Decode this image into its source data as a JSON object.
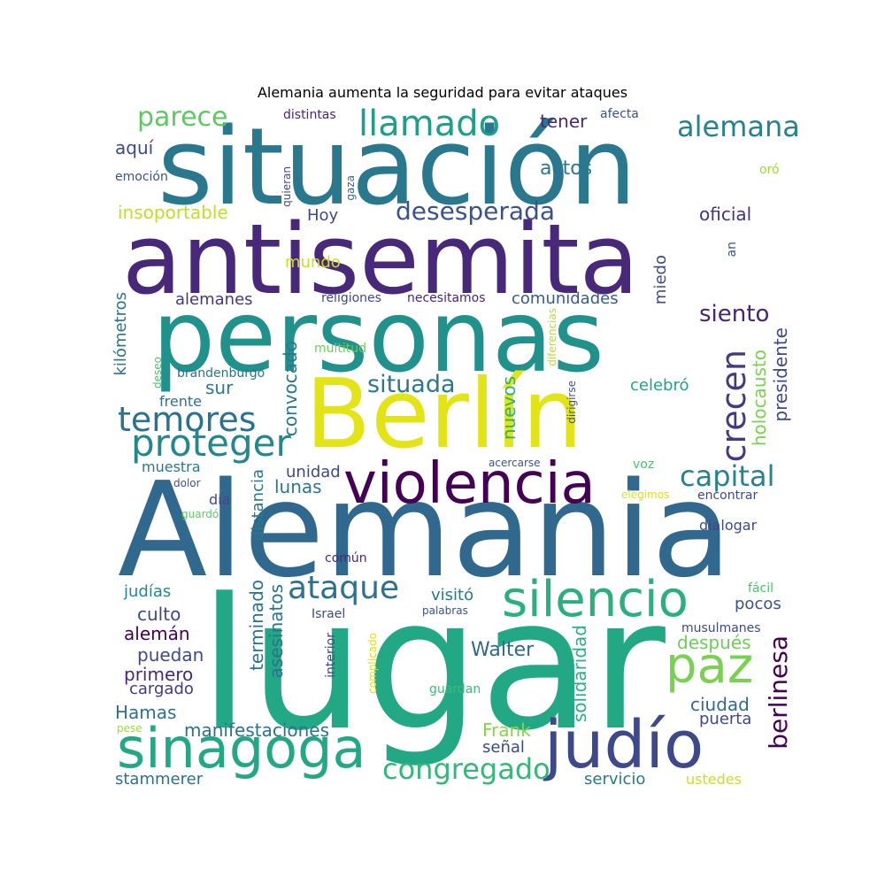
{
  "title": "Alemania aumenta la seguridad para evitar ataques",
  "words": [
    {
      "text": "situación",
      "color": "#2a788e"
    },
    {
      "text": "antisemita",
      "color": "#482878"
    },
    {
      "text": "personas",
      "color": "#21918c"
    },
    {
      "text": "Berlín",
      "color": "#e3e418"
    },
    {
      "text": "Alemania",
      "color": "#31688e"
    },
    {
      "text": "lugar",
      "color": "#22a884"
    },
    {
      "text": "violencia",
      "color": "#440154"
    },
    {
      "text": "sinagoga",
      "color": "#22a884"
    },
    {
      "text": "judío",
      "color": "#3e4989"
    },
    {
      "text": "silencio",
      "color": "#2ab07f"
    },
    {
      "text": "paz",
      "color": "#7ad151"
    },
    {
      "text": "parece",
      "color": "#5ec962"
    },
    {
      "text": "llamado",
      "color": "#1f9e89"
    },
    {
      "text": "alemana",
      "color": "#26828e"
    },
    {
      "text": "temores",
      "color": "#2c728e"
    },
    {
      "text": "proteger",
      "color": "#23888e"
    },
    {
      "text": "desesperada",
      "color": "#3b528b"
    },
    {
      "text": "crecen",
      "color": "#443983"
    },
    {
      "text": "siento",
      "color": "#482475"
    },
    {
      "text": "capital",
      "color": "#26828e"
    },
    {
      "text": "ataque",
      "color": "#2c728e"
    },
    {
      "text": "congregado",
      "color": "#35b779"
    },
    {
      "text": "berlinesa",
      "color": "#440154"
    },
    {
      "text": "situada",
      "color": "#2a788e"
    },
    {
      "text": "insoportable",
      "color": "#bddf26"
    },
    {
      "text": "oficial",
      "color": "#46327e"
    },
    {
      "text": "tener",
      "color": "#482878"
    },
    {
      "text": "actos",
      "color": "#2a788e"
    },
    {
      "text": "distintas",
      "color": "#482475"
    },
    {
      "text": "afecta",
      "color": "#3b528b"
    },
    {
      "text": "aquí",
      "color": "#3e4989"
    },
    {
      "text": "emoción",
      "color": "#3b528b"
    },
    {
      "text": "quieran",
      "color": "#3e4989"
    },
    {
      "text": "gaza",
      "color": "#31688e"
    },
    {
      "text": "oró",
      "color": "#a0da39"
    },
    {
      "text": "Hoy",
      "color": "#3e4989"
    },
    {
      "text": "mundo",
      "color": "#c8e020"
    },
    {
      "text": "an",
      "color": "#3b528b"
    },
    {
      "text": "miedo",
      "color": "#3e4989"
    },
    {
      "text": "alemanes",
      "color": "#453781"
    },
    {
      "text": "religiones",
      "color": "#3e4989"
    },
    {
      "text": "necesitamos",
      "color": "#482878"
    },
    {
      "text": "comunidades",
      "color": "#365c8d"
    },
    {
      "text": "kilómetros",
      "color": "#2c728e"
    },
    {
      "text": "convocado",
      "color": "#2a788e"
    },
    {
      "text": "multitud",
      "color": "#6ccd5a"
    },
    {
      "text": "holocausto",
      "color": "#7ad151"
    },
    {
      "text": "presidente",
      "color": "#3e4989"
    },
    {
      "text": "deseo",
      "color": "#4ac16d"
    },
    {
      "text": "brandenburgo",
      "color": "#2c728e"
    },
    {
      "text": "sur",
      "color": "#2a788e"
    },
    {
      "text": "diferencias",
      "color": "#b5de2b"
    },
    {
      "text": "celebró",
      "color": "#20a486"
    },
    {
      "text": "frente",
      "color": "#2c728e"
    },
    {
      "text": "nuevos",
      "color": "#2ab07f"
    },
    {
      "text": "dirigirse",
      "color": "#3b528b"
    },
    {
      "text": "muestra",
      "color": "#2a788e"
    },
    {
      "text": "unidad",
      "color": "#3e4989"
    },
    {
      "text": "lunas",
      "color": "#2a788e"
    },
    {
      "text": "acercarse",
      "color": "#3b528b"
    },
    {
      "text": "voz",
      "color": "#4ac16d"
    },
    {
      "text": "dolor",
      "color": "#3b528b"
    },
    {
      "text": "distancia",
      "color": "#2a788e"
    },
    {
      "text": "elegimos",
      "color": "#d8e219"
    },
    {
      "text": "encontrar",
      "color": "#3e4989"
    },
    {
      "text": "día",
      "color": "#3e4989"
    },
    {
      "text": "guardó",
      "color": "#5ec962"
    },
    {
      "text": "dialogar",
      "color": "#3e4989"
    },
    {
      "text": "común",
      "color": "#482878"
    },
    {
      "text": "terminado",
      "color": "#2c728e"
    },
    {
      "text": "fácil",
      "color": "#4ac16d"
    },
    {
      "text": "judías",
      "color": "#23888e"
    },
    {
      "text": "visitó",
      "color": "#2a788e"
    },
    {
      "text": "culto",
      "color": "#3e4989"
    },
    {
      "text": "pocos",
      "color": "#3b528b"
    },
    {
      "text": "asesinatos",
      "color": "#2c728e"
    },
    {
      "text": "Israel",
      "color": "#3e4989"
    },
    {
      "text": "palabras",
      "color": "#3b528b"
    },
    {
      "text": "alemán",
      "color": "#440154"
    },
    {
      "text": "solidaridad",
      "color": "#2ab07f"
    },
    {
      "text": "musulmanes",
      "color": "#3e4989"
    },
    {
      "text": "después",
      "color": "#6ccd5a"
    },
    {
      "text": "interior",
      "color": "#3e4989"
    },
    {
      "text": "complicado",
      "color": "#d8e219"
    },
    {
      "text": "puedan",
      "color": "#3e4989"
    },
    {
      "text": "Walter",
      "color": "#31688e"
    },
    {
      "text": "primero",
      "color": "#482878"
    },
    {
      "text": "cargado",
      "color": "#443983"
    },
    {
      "text": "guardan",
      "color": "#3cbc75"
    },
    {
      "text": "ciudad",
      "color": "#31688e"
    },
    {
      "text": "Hamas",
      "color": "#2c728e"
    },
    {
      "text": "puerta",
      "color": "#3e4989"
    },
    {
      "text": "pese",
      "color": "#a0da39"
    },
    {
      "text": "Frank",
      "color": "#86d549"
    },
    {
      "text": "manifestaciones",
      "color": "#2c728e"
    },
    {
      "text": "señal",
      "color": "#3e4989"
    },
    {
      "text": "stammerer",
      "color": "#2c728e"
    },
    {
      "text": "servicio",
      "color": "#2a788e"
    },
    {
      "text": "ustedes",
      "color": "#c8e020"
    }
  ]
}
